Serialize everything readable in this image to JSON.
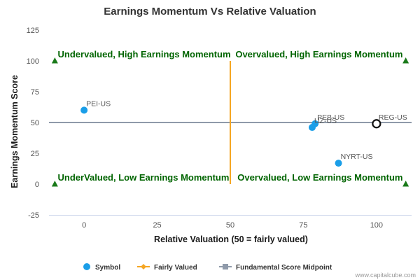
{
  "chart_data": {
    "type": "scatter",
    "title": "Earnings Momentum Vs Relative Valuation",
    "xlabel": "Relative Valuation (50 = fairly valued)",
    "ylabel": "Earnings Momentum Score",
    "xlim": [
      -12,
      112
    ],
    "ylim": [
      -25,
      125
    ],
    "xticks": [
      0,
      25,
      50,
      75,
      100
    ],
    "yticks": [
      -25,
      0,
      25,
      50,
      75,
      100,
      125
    ],
    "quadrant_labels": [
      {
        "text": "Undervalued, High Earnings Momentum",
        "x": -9,
        "y": 100,
        "anchor": "start"
      },
      {
        "text": "Overvalued, High Earnings Momentum",
        "x": 109,
        "y": 100,
        "anchor": "end"
      },
      {
        "text": "UnderValued, Low Earnings Momentum",
        "x": -9,
        "y": 0,
        "anchor": "start"
      },
      {
        "text": "Overvalued, Low Earnings Momentum",
        "x": 109,
        "y": 0,
        "anchor": "end"
      }
    ],
    "corner_markers": [
      {
        "x": -10,
        "y": 100
      },
      {
        "x": 110,
        "y": 100
      },
      {
        "x": -10,
        "y": 0
      },
      {
        "x": 110,
        "y": 0
      }
    ],
    "series": [
      {
        "name": "Symbol",
        "points": [
          {
            "label": "PEI-US",
            "x": 0,
            "y": 60
          },
          {
            "label": "PEB-US",
            "x": 79,
            "y": 49
          },
          {
            "label": "UZ-US",
            "x": 78,
            "y": 46
          },
          {
            "label": "NYRT-US",
            "x": 87,
            "y": 17
          },
          {
            "label": "REG-US",
            "x": 100,
            "y": 49,
            "highlight": true
          }
        ]
      },
      {
        "name": "Fairly Valued",
        "x_value": 50
      },
      {
        "name": "Fundamental Score Midpoint",
        "y_value": 50
      }
    ],
    "colors": {
      "symbol": "#1a9ee8",
      "fairly_valued": "#f5a623",
      "midpoint": "#8f9aaa",
      "quadrant_text": "#006400",
      "marker": "#1a7a1a"
    },
    "legend_position": "bottom",
    "grid": false
  },
  "credit": "www.capitalcube.com"
}
